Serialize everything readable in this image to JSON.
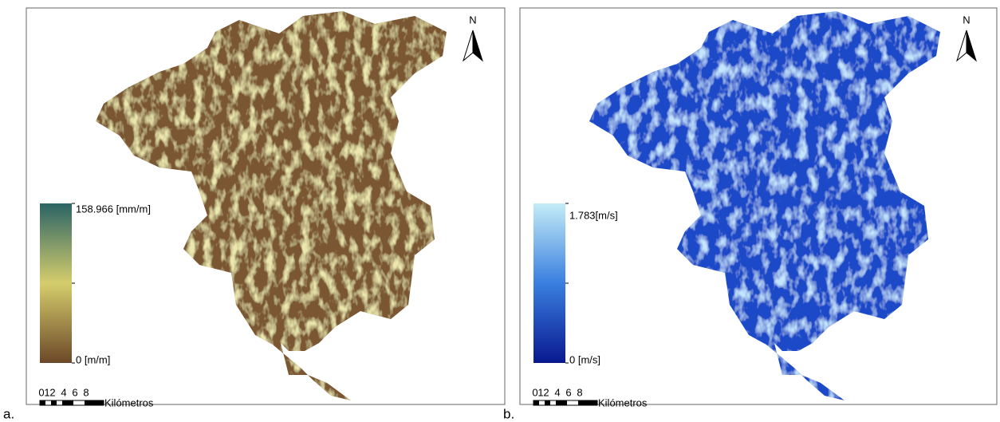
{
  "panels": [
    {
      "label": "a.",
      "north": "N",
      "legend": {
        "max": "158.966 [mm/m]",
        "min": "0 [m/m]"
      },
      "scale": {
        "ticks": [
          "0",
          "1",
          "2",
          "4",
          "6",
          "8"
        ],
        "unit": "Kilómetros"
      }
    },
    {
      "label": "b.",
      "north": "N",
      "legend": {
        "max": "1.783[m/s]",
        "min": "0 [m/s]"
      },
      "scale": {
        "ticks": [
          "0",
          "1",
          "2",
          "4",
          "6",
          "8"
        ],
        "unit": "Kilómetros"
      }
    }
  ]
}
